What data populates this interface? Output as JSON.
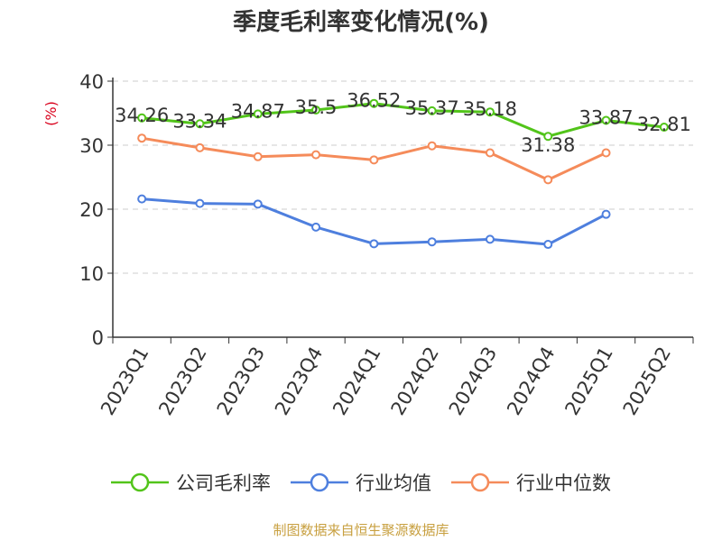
{
  "chart_data": {
    "type": "line",
    "title": "季度毛利率变化情况(%)",
    "ylabel": "(%)",
    "xlabel": "",
    "ylim": [
      0,
      40
    ],
    "yticks": [
      0,
      10,
      20,
      30,
      40
    ],
    "categories": [
      "2023Q1",
      "2023Q2",
      "2023Q3",
      "2023Q4",
      "2024Q1",
      "2024Q2",
      "2024Q3",
      "2024Q4",
      "2025Q1",
      "2025Q2"
    ],
    "grid": true,
    "legend_position": "bottom",
    "series": [
      {
        "name": "公司毛利率",
        "color": "#52c41a",
        "show_labels": true,
        "values": [
          34.26,
          33.34,
          34.87,
          35.5,
          36.52,
          35.37,
          35.18,
          31.38,
          33.87,
          32.81
        ]
      },
      {
        "name": "行业均值",
        "color": "#4e7fde",
        "show_labels": false,
        "values": [
          21.6,
          20.9,
          20.8,
          17.2,
          14.6,
          14.9,
          15.3,
          14.5,
          19.2,
          null
        ]
      },
      {
        "name": "行业中位数",
        "color": "#f58b5a",
        "show_labels": false,
        "values": [
          31.1,
          29.6,
          28.2,
          28.5,
          27.7,
          29.9,
          28.8,
          24.6,
          28.8,
          null
        ]
      }
    ]
  },
  "source_note": "制图数据来自恒生聚源数据库"
}
